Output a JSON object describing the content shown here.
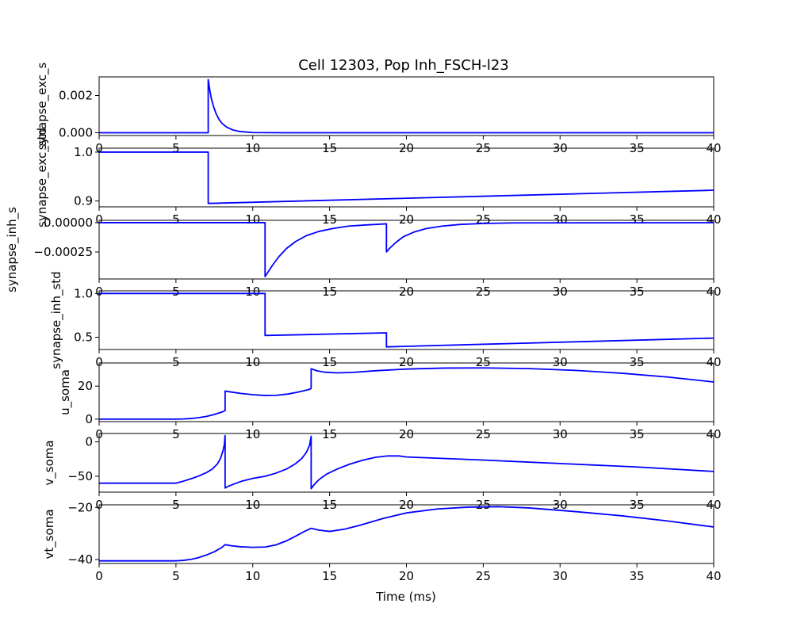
{
  "figure": {
    "title": "Cell 12303, Pop Inh_FSCH-l23",
    "line_color": "#0000ff"
  },
  "chart_data": [
    {
      "type": "line",
      "title": "Cell 12303, Pop Inh_FSCH-l23",
      "ylabel": "synapse_exc_s",
      "xlabel": "",
      "xlim": [
        0,
        40
      ],
      "ylim": [
        -0.00015,
        0.003
      ],
      "xticks": [
        0,
        5,
        10,
        15,
        20,
        25,
        30,
        35,
        40
      ],
      "yticks": [
        0.0,
        0.002
      ],
      "ytick_labels": [
        "0.000",
        "0.002"
      ],
      "grid": false,
      "series": [
        {
          "x": [
            0,
            7.1,
            7.1,
            7.2,
            7.3,
            7.45,
            7.6,
            7.8,
            8.0,
            8.3,
            8.7,
            9.2,
            10,
            12,
            40
          ],
          "y": [
            0,
            0,
            0.00285,
            0.0023,
            0.00185,
            0.0014,
            0.00105,
            0.00072,
            0.0005,
            0.0003,
            0.00015,
            6e-05,
            1e-05,
            0,
            0
          ]
        }
      ]
    },
    {
      "type": "line",
      "ylabel": "synapse_exc_std",
      "xlabel": "",
      "xlim": [
        0,
        40
      ],
      "ylim": [
        0.888,
        1.008
      ],
      "xticks": [
        0,
        5,
        10,
        15,
        20,
        25,
        30,
        35,
        40
      ],
      "yticks": [
        0.9,
        1.0
      ],
      "ytick_labels": [
        "0.9",
        "1.0"
      ],
      "grid": false,
      "series": [
        {
          "x": [
            0,
            7.1,
            7.1,
            40
          ],
          "y": [
            1.0,
            1.0,
            0.895,
            0.922
          ]
        }
      ]
    },
    {
      "type": "line",
      "ylabel": "synapse_inh_s",
      "xlabel": "",
      "xlim": [
        0,
        40
      ],
      "ylim": [
        -0.00048,
        2e-05
      ],
      "xticks": [
        0,
        5,
        10,
        15,
        20,
        25,
        30,
        35,
        40
      ],
      "yticks": [
        -0.00025,
        0.0
      ],
      "ytick_labels": [
        "−0.00025",
        "0.00000"
      ],
      "grid": false,
      "series": [
        {
          "x": [
            0,
            10.8,
            10.8,
            11.0,
            11.3,
            11.7,
            12.2,
            12.8,
            13.5,
            14.3,
            15.2,
            16.2,
            17.3,
            18.7,
            18.7,
            18.9,
            19.3,
            19.8,
            20.5,
            21.3,
            22.3,
            23.5,
            25.0,
            27.0,
            40
          ],
          "y": [
            0,
            0,
            -0.00046,
            -0.00042,
            -0.00036,
            -0.00029,
            -0.00022,
            -0.00016,
            -0.00011,
            -7.5e-05,
            -5e-05,
            -3e-05,
            -2e-05,
            -1e-05,
            -0.00025,
            -0.00022,
            -0.00017,
            -0.00012,
            -8e-05,
            -5e-05,
            -3e-05,
            -1.5e-05,
            -7e-06,
            -2e-06,
            0
          ]
        }
      ]
    },
    {
      "type": "line",
      "ylabel": "synapse_inh_std",
      "xlabel": "",
      "xlim": [
        0,
        40
      ],
      "ylim": [
        0.36,
        1.03
      ],
      "xticks": [
        0,
        5,
        10,
        15,
        20,
        25,
        30,
        35,
        40
      ],
      "yticks": [
        0.5,
        1.0
      ],
      "ytick_labels": [
        "0.5",
        "1.0"
      ],
      "grid": false,
      "series": [
        {
          "x": [
            0,
            10.8,
            10.8,
            18.7,
            18.7,
            40
          ],
          "y": [
            1.0,
            1.0,
            0.52,
            0.55,
            0.39,
            0.49
          ]
        }
      ]
    },
    {
      "type": "line",
      "ylabel": "u_soma",
      "xlabel": "",
      "xlim": [
        0,
        40
      ],
      "ylim": [
        -1.5,
        34
      ],
      "xticks": [
        0,
        5,
        10,
        15,
        20,
        25,
        30,
        35,
        40
      ],
      "yticks": [
        0,
        20
      ],
      "ytick_labels": [
        "0",
        "20"
      ],
      "grid": false,
      "series": [
        {
          "x": [
            0,
            5.0,
            5.5,
            6.0,
            6.5,
            7.0,
            7.5,
            8.0,
            8.2,
            8.2,
            8.6,
            9.2,
            10.0,
            10.8,
            11.5,
            12.3,
            13.0,
            13.6,
            13.8,
            13.8,
            14.2,
            14.7,
            15.5,
            16.5,
            18.0,
            20.0,
            22.5,
            25.0,
            28.0,
            31.0,
            34.0,
            37.0,
            40.0
          ],
          "y": [
            0,
            0,
            0.1,
            0.4,
            0.9,
            1.7,
            2.8,
            4.3,
            5.2,
            17.0,
            16.4,
            15.6,
            14.8,
            14.3,
            14.4,
            15.2,
            16.5,
            17.8,
            18.5,
            30.5,
            29.2,
            28.4,
            28.0,
            28.3,
            29.3,
            30.3,
            30.9,
            31.0,
            30.6,
            29.5,
            27.8,
            25.5,
            22.5
          ]
        }
      ]
    },
    {
      "type": "line",
      "ylabel": "v_soma",
      "xlabel": "",
      "xlim": [
        0,
        40
      ],
      "ylim": [
        -73,
        12
      ],
      "xticks": [
        0,
        5,
        10,
        15,
        20,
        25,
        30,
        35,
        40
      ],
      "yticks": [
        -50,
        0
      ],
      "ytick_labels": [
        "−50",
        "0"
      ],
      "grid": false,
      "series": [
        {
          "x": [
            0,
            5.0,
            5.5,
            6.0,
            6.5,
            7.0,
            7.4,
            7.7,
            7.9,
            8.05,
            8.15,
            8.2,
            8.2,
            8.4,
            8.8,
            9.3,
            10.0,
            10.8,
            11.5,
            12.2,
            12.8,
            13.2,
            13.5,
            13.7,
            13.8,
            13.8,
            14.0,
            14.3,
            14.8,
            15.5,
            16.3,
            17.2,
            18.0,
            18.8,
            19.5,
            20.0,
            25.0,
            30.0,
            35.0,
            40.0
          ],
          "y": [
            -60,
            -60,
            -57,
            -53.5,
            -49.5,
            -44.5,
            -39,
            -32,
            -24,
            -14,
            -4,
            9,
            -67,
            -64.5,
            -61,
            -57,
            -53,
            -50,
            -45.5,
            -39.5,
            -31.5,
            -24,
            -15,
            -5,
            8,
            -68,
            -62,
            -55,
            -47,
            -39.5,
            -32.5,
            -26.5,
            -22.5,
            -20.5,
            -20.5,
            -22,
            -26.5,
            -31.5,
            -36.5,
            -43
          ]
        }
      ]
    },
    {
      "type": "line",
      "ylabel": "vt_soma",
      "xlabel": "Time (ms)",
      "xlim": [
        0,
        40
      ],
      "ylim": [
        -41.5,
        -19
      ],
      "xticks": [
        0,
        5,
        10,
        15,
        20,
        25,
        30,
        35,
        40
      ],
      "yticks": [
        -40,
        -20
      ],
      "ytick_labels": [
        "−40",
        "−20"
      ],
      "grid": false,
      "series": [
        {
          "x": [
            0,
            5.0,
            5.5,
            6.0,
            6.5,
            7.0,
            7.5,
            8.0,
            8.2,
            8.6,
            9.2,
            10.0,
            10.8,
            11.5,
            12.2,
            12.8,
            13.3,
            13.8,
            14.3,
            15.0,
            16.0,
            17.0,
            18.5,
            20.0,
            22.0,
            24.0,
            26.0,
            28.0,
            31.0,
            34.0,
            37.0,
            40.0
          ],
          "y": [
            -40.5,
            -40.5,
            -40.3,
            -39.9,
            -39.2,
            -38.2,
            -37.0,
            -35.3,
            -34.3,
            -34.7,
            -35.1,
            -35.3,
            -35.2,
            -34.4,
            -32.8,
            -31.0,
            -29.4,
            -28.0,
            -28.7,
            -29.2,
            -28.3,
            -26.8,
            -24.2,
            -22.1,
            -20.6,
            -19.9,
            -19.7,
            -20.2,
            -21.6,
            -23.2,
            -25.2,
            -27.5
          ]
        }
      ]
    }
  ]
}
